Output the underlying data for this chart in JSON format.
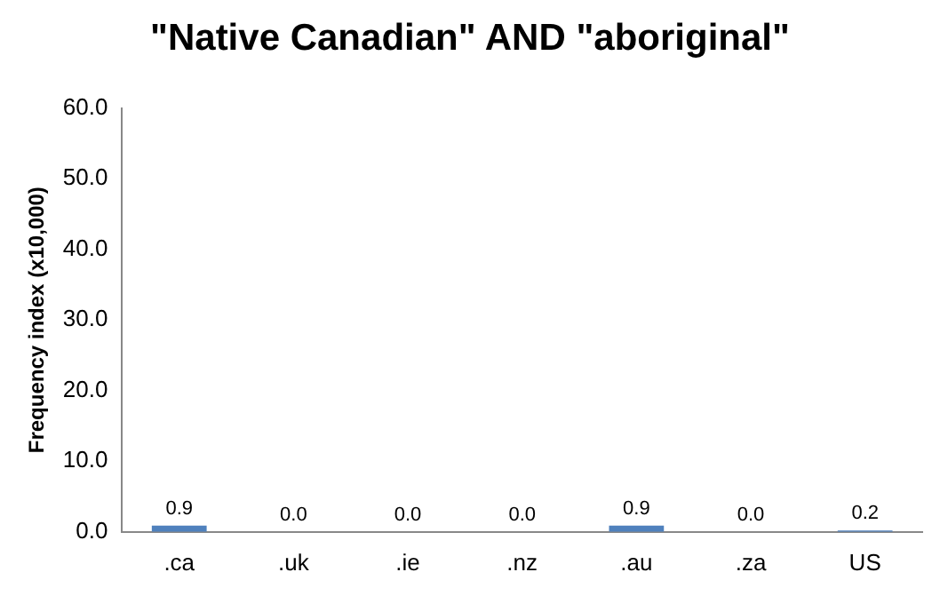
{
  "chart_data": {
    "type": "bar",
    "title": "\"Native Canadian\" AND \"aboriginal\"",
    "ylabel": "Frequency index (x10,000)",
    "categories": [
      ".ca",
      ".uk",
      ".ie",
      ".nz",
      ".au",
      ".za",
      "US"
    ],
    "values": [
      0.9,
      0,
      0,
      0,
      0.9,
      0,
      0.2
    ],
    "value_labels": [
      "0.9",
      "0.0",
      "0.0",
      "0.0",
      "0.9",
      "0.0",
      "0.2"
    ],
    "color": "#4f81bd",
    "ylim": [
      0,
      60
    ],
    "yticks": [
      {
        "value": 0,
        "label": "0.0"
      },
      {
        "value": 10,
        "label": "10.0"
      },
      {
        "value": 20,
        "label": "20.0"
      },
      {
        "value": 30,
        "label": "30.0"
      },
      {
        "value": 40,
        "label": "40.0"
      },
      {
        "value": 50,
        "label": "50.0"
      },
      {
        "value": 60,
        "label": "60.0"
      }
    ],
    "grid": false,
    "legend": false
  }
}
